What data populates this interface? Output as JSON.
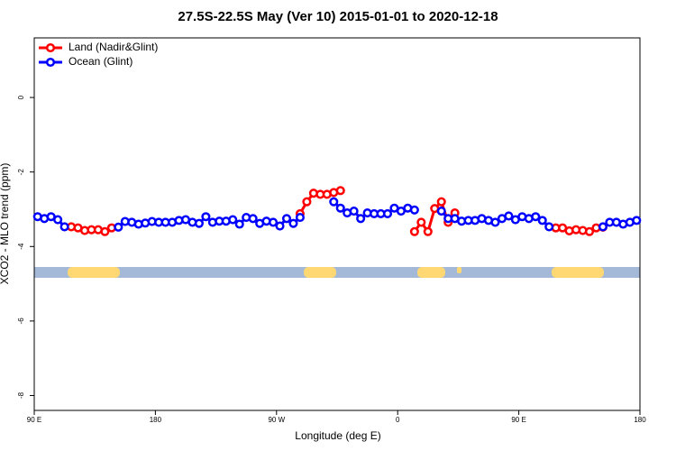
{
  "chart_data": {
    "type": "line",
    "title": "27.5S-22.5S May (Ver 10)   2015-01-01 to 2020-12-18",
    "xlabel": "Longitude (deg E)",
    "ylabel": "XCO2 - MLO trend (ppm)",
    "xlim": [
      90,
      540
    ],
    "ylim": [
      -8.4,
      1.6
    ],
    "xticks": [
      {
        "value": 90,
        "label": "90 E"
      },
      180,
      {
        "value": 270,
        "label": "90 W"
      },
      {
        "value": 360,
        "label": "0"
      },
      {
        "value": 450,
        "label": "90 E"
      },
      {
        "value": 540,
        "label": "180"
      }
    ],
    "yticks": [
      0,
      -2,
      -4,
      -6,
      -8
    ],
    "legend": "top-left",
    "x": [
      92.5,
      97.5,
      102.5,
      107.5,
      112.5,
      117.5,
      122.5,
      127.5,
      132.5,
      137.5,
      142.5,
      147.5,
      152.5,
      157.5,
      162.5,
      167.5,
      172.5,
      177.5,
      182.5,
      187.5,
      192.5,
      197.5,
      202.5,
      207.5,
      212.5,
      217.5,
      222.5,
      227.5,
      232.5,
      237.5,
      242.5,
      247.5,
      252.5,
      257.5,
      262.5,
      267.5,
      272.5,
      277.5,
      282.5,
      287.5,
      292.5,
      297.5,
      302.5,
      307.5,
      312.5,
      317.5,
      322.5,
      327.5,
      332.5,
      337.5,
      342.5,
      347.5,
      352.5,
      357.5,
      362.5,
      367.5,
      372.5,
      377.5,
      382.5,
      387.5,
      392.5,
      397.5,
      402.5,
      407.5,
      412.5,
      417.5,
      422.5,
      427.5,
      432.5,
      437.5,
      442.5,
      447.5,
      452.5,
      457.5,
      462.5,
      467.5,
      472.5,
      477.5,
      482.5,
      487.5,
      492.5,
      497.5,
      502.5,
      507.5,
      512.5,
      517.5,
      522.5,
      527.5,
      532.5,
      537.5
    ],
    "series": [
      {
        "name": "Land (Nadir&Glint)",
        "color": "#ff0000",
        "values": [
          null,
          null,
          null,
          null,
          null,
          -3.47,
          -3.5,
          -3.57,
          -3.55,
          -3.55,
          -3.6,
          -3.5,
          null,
          null,
          null,
          null,
          null,
          null,
          null,
          null,
          null,
          null,
          null,
          null,
          null,
          null,
          null,
          null,
          null,
          null,
          null,
          null,
          null,
          null,
          null,
          null,
          null,
          null,
          null,
          -3.12,
          -2.8,
          -2.57,
          -2.6,
          -2.6,
          -2.55,
          -2.5,
          null,
          null,
          null,
          null,
          null,
          null,
          null,
          null,
          null,
          null,
          -3.6,
          -3.35,
          -3.6,
          -2.98,
          -2.8,
          -3.35,
          -3.1,
          null,
          null,
          null,
          null,
          null,
          null,
          null,
          null,
          null,
          null,
          null,
          null,
          null,
          null,
          -3.5,
          -3.5,
          -3.58,
          -3.55,
          -3.57,
          -3.6,
          -3.5,
          -3.48,
          null,
          null,
          null,
          null,
          null
        ]
      },
      {
        "name": "Ocean (Glint)",
        "color": "#0000ff",
        "values": [
          -3.2,
          -3.25,
          -3.2,
          -3.28,
          -3.47,
          null,
          null,
          null,
          null,
          null,
          null,
          null,
          -3.48,
          -3.33,
          -3.35,
          -3.4,
          -3.37,
          -3.33,
          -3.35,
          -3.35,
          -3.35,
          -3.3,
          -3.28,
          -3.35,
          -3.38,
          -3.2,
          -3.35,
          -3.32,
          -3.32,
          -3.28,
          -3.4,
          -3.22,
          -3.25,
          -3.38,
          -3.32,
          -3.35,
          -3.45,
          -3.25,
          -3.38,
          -3.22,
          null,
          null,
          null,
          null,
          -2.8,
          -2.97,
          -3.1,
          -3.05,
          -3.25,
          -3.1,
          -3.12,
          -3.12,
          -3.12,
          -2.97,
          -3.05,
          -2.97,
          -3.02,
          null,
          null,
          null,
          -3.05,
          -3.25,
          -3.25,
          -3.32,
          -3.3,
          -3.3,
          -3.25,
          -3.3,
          -3.35,
          -3.25,
          -3.18,
          -3.28,
          -3.2,
          -3.25,
          -3.2,
          -3.3,
          -3.47,
          null,
          null,
          null,
          null,
          null,
          null,
          null,
          -3.47,
          -3.35,
          -3.35,
          -3.4,
          -3.35,
          -3.3
        ]
      }
    ]
  }
}
